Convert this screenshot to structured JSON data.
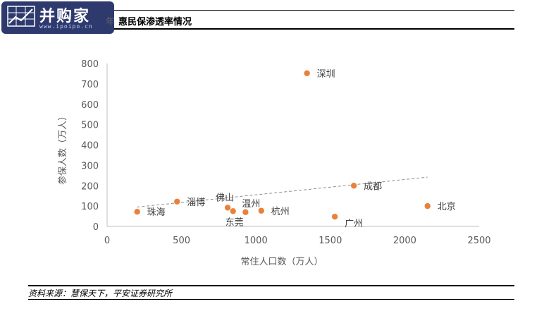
{
  "header": {
    "logo_text": "并购家",
    "logo_sub": "www.ipoipo.cn",
    "title_prefix": "年",
    "title": "惠民保渗透率情况"
  },
  "chart_data": {
    "type": "scatter",
    "xlabel": "常住人口数（万人）",
    "ylabel": "参保人数（万人）",
    "xlim": [
      0,
      2500
    ],
    "ylim": [
      0,
      800
    ],
    "x_ticks": [
      "0",
      "500",
      "1000",
      "1500",
      "2000",
      "2500"
    ],
    "y_ticks": [
      "0",
      "100",
      "200",
      "300",
      "400",
      "500",
      "600",
      "700",
      "800"
    ],
    "grid": false,
    "points": [
      {
        "label": "深圳",
        "x": 1343,
        "y": 752,
        "label_pos": "right"
      },
      {
        "label": "成都",
        "x": 1658,
        "y": 200,
        "label_pos": "right"
      },
      {
        "label": "北京",
        "x": 2153,
        "y": 100,
        "label_pos": "right"
      },
      {
        "label": "广州",
        "x": 1530,
        "y": 48,
        "label_pos": "right-below"
      },
      {
        "label": "淄博",
        "x": 470,
        "y": 122,
        "label_pos": "right"
      },
      {
        "label": "佛山",
        "x": 810,
        "y": 92,
        "label_pos": "above"
      },
      {
        "label": "温州",
        "x": 930,
        "y": 70,
        "label_pos": "above-right"
      },
      {
        "label": "东莞",
        "x": 846,
        "y": 75,
        "label_pos": "below"
      },
      {
        "label": "杭州",
        "x": 1036,
        "y": 77,
        "label_pos": "right"
      },
      {
        "label": "珠海",
        "x": 202,
        "y": 72,
        "label_pos": "right"
      }
    ],
    "trendline": {
      "style": "dashed",
      "x": [
        200,
        2153
      ],
      "y": [
        95,
        242
      ]
    },
    "colors": {
      "point": "#E8823A",
      "trendline": "#8c8c8c",
      "axis": "#bfbfbf",
      "text": "#595959"
    }
  },
  "footer": {
    "source": "资料来源：慧保天下，平安证券研究所"
  }
}
